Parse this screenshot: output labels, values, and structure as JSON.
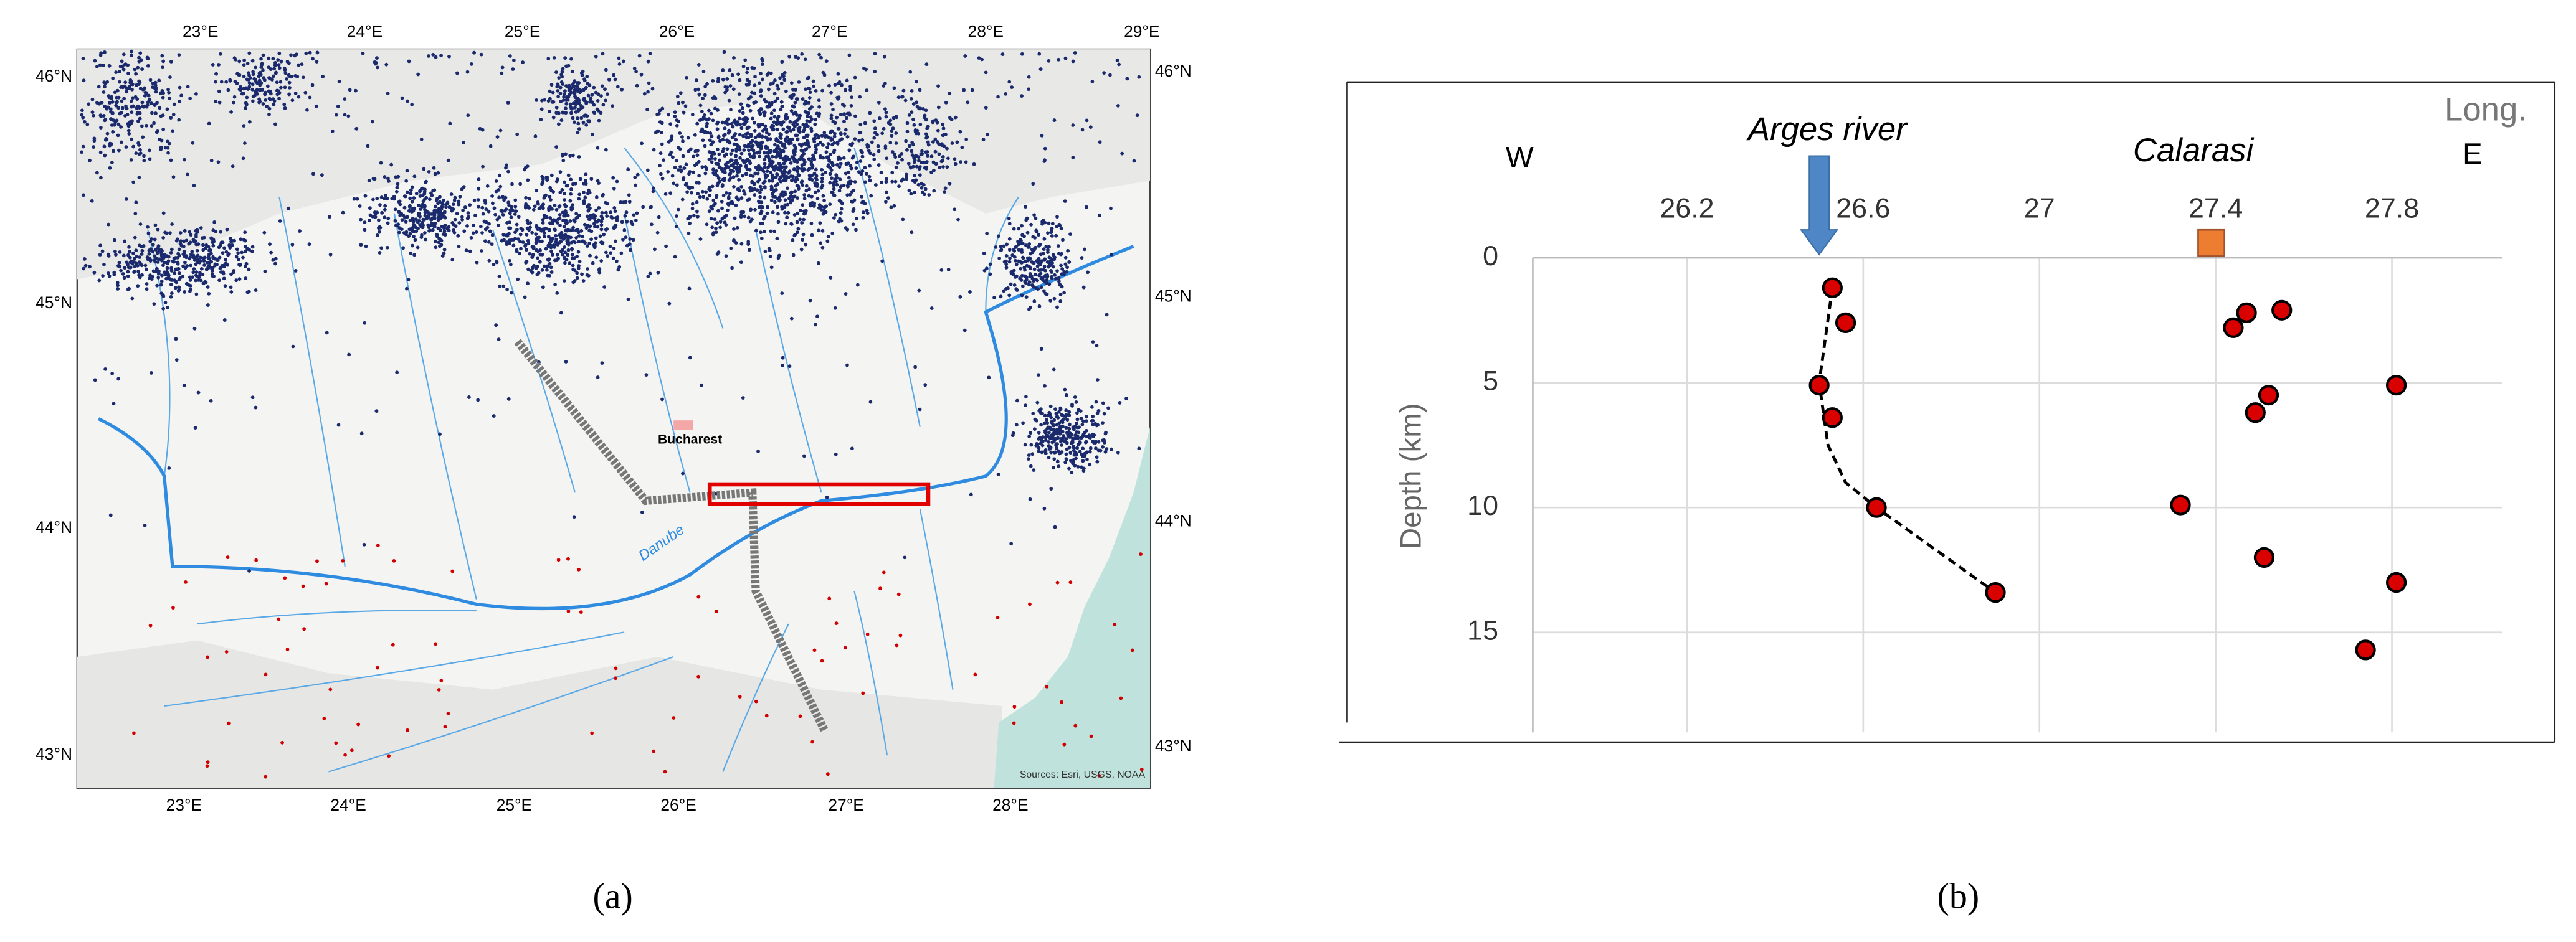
{
  "map": {
    "lon_labels_top": [
      "23°E",
      "24°E",
      "25°E",
      "26°E",
      "27°E",
      "28°E",
      "29°E"
    ],
    "lon_labels_bottom": [
      "23°E",
      "24°E",
      "25°E",
      "26°E",
      "27°E",
      "28°E"
    ],
    "lat_labels_left": [
      "46°N",
      "45°N",
      "44°N",
      "43°N"
    ],
    "lat_labels_right": [
      "46°N",
      "45°N",
      "44°N",
      "43°N"
    ],
    "city": "Bucharest",
    "river": "Danube",
    "credits": "Sources: Esri, USGS, NOAA"
  },
  "captions": [
    "(a)",
    "(b)"
  ],
  "chart_data": {
    "type": "scatter",
    "x_label": "Long.",
    "y_label": "Depth (km)",
    "west_label": "W",
    "east_label": "E",
    "xlim": [
      25.85,
      28.05
    ],
    "xticks": [
      26.2,
      26.6,
      27,
      27.4,
      27.8
    ],
    "ylim": [
      0,
      19
    ],
    "yticks": [
      0,
      5,
      10,
      15
    ],
    "y_inverted": true,
    "grid": true,
    "series": [
      {
        "color": "#d90000",
        "x": [
          26.53,
          26.56,
          26.5,
          26.53,
          26.63,
          26.9,
          27.55,
          27.47,
          27.44,
          27.52,
          27.49,
          27.81,
          27.32,
          27.51,
          27.81,
          27.74
        ],
        "values": [
          1.2,
          2.6,
          5.1,
          6.4,
          10.0,
          13.4,
          2.1,
          2.2,
          2.8,
          5.5,
          6.2,
          5.1,
          9.9,
          12.0,
          13.0,
          15.7
        ]
      }
    ],
    "line": {
      "color": "#000000",
      "dash": true,
      "x": [
        26.53,
        26.5,
        26.52,
        26.56,
        26.63,
        26.9
      ],
      "y": [
        1.2,
        5.0,
        7.5,
        9.0,
        10.0,
        13.4
      ]
    },
    "annotations": [
      {
        "text": "Arges river",
        "x": 26.5,
        "color": "#4f86c6"
      },
      {
        "text": "Calarasi",
        "x": 27.39,
        "color": "#ed7d31"
      }
    ]
  }
}
